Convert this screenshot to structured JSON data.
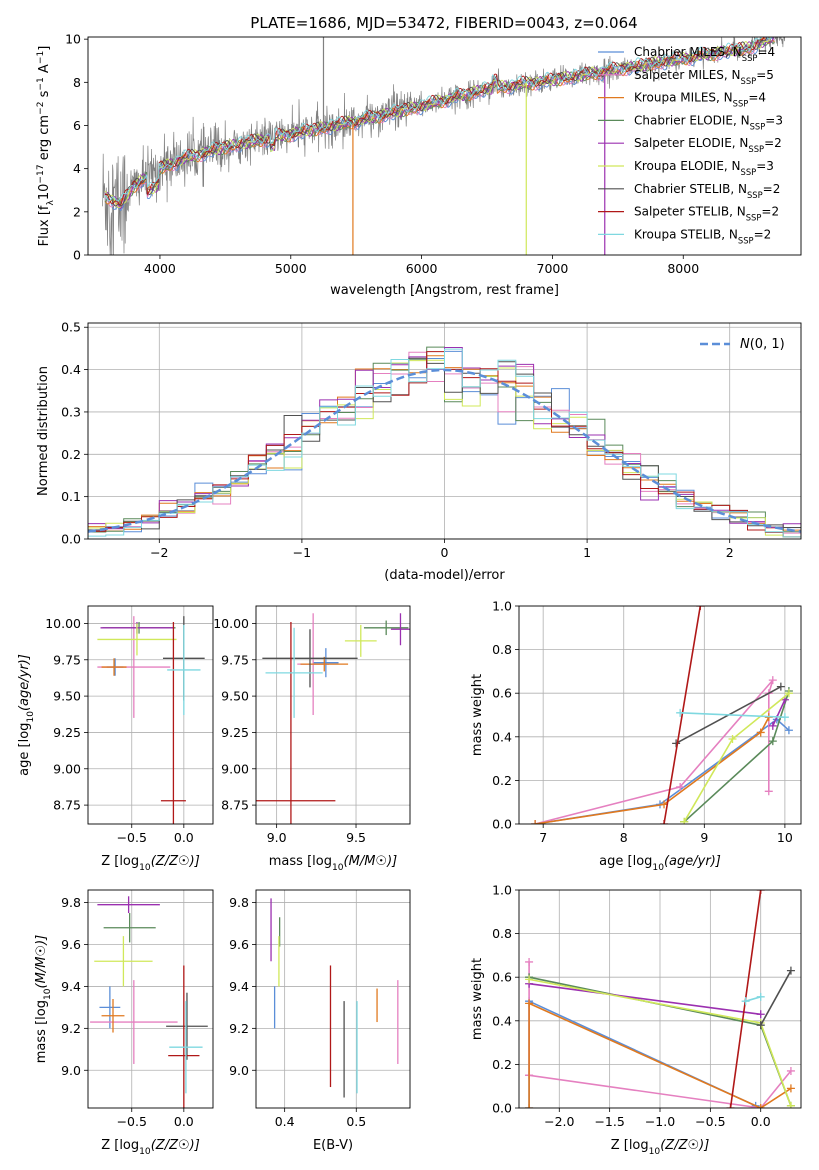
{
  "figure": {
    "title": "PLATE=1686, MJD=53472, FIBERID=0043, z=0.064"
  },
  "colors": {
    "series": [
      "#5b8ed8",
      "#e580c0",
      "#e0791f",
      "#5a8a5a",
      "#9b30b0",
      "#d0e85a",
      "#505050",
      "#b01818",
      "#7fd8e0"
    ],
    "data_gray": "#808080",
    "gaussian": "#5b8ed8",
    "grid": "#b0b0b0"
  },
  "legend_labels": [
    "Chabrier MILES, N_SSP=4",
    "Salpeter MILES, N_SSP=5",
    "Kroupa MILES, N_SSP=4",
    "Chabrier ELODIE, N_SSP=3",
    "Salpeter ELODIE, N_SSP=2",
    "Kroupa ELODIE, N_SSP=3",
    "Chabrier STELIB, N_SSP=2",
    "Salpeter STELIB, N_SSP=2",
    "Kroupa STELIB, N_SSP=2"
  ],
  "legend_parts": [
    [
      "Chabrier MILES, N",
      "SSP",
      "=4"
    ],
    [
      "Salpeter MILES, N",
      "SSP",
      "=5"
    ],
    [
      "Kroupa MILES, N",
      "SSP",
      "=4"
    ],
    [
      "Chabrier ELODIE, N",
      "SSP",
      "=3"
    ],
    [
      "Salpeter ELODIE, N",
      "SSP",
      "=2"
    ],
    [
      "Kroupa ELODIE, N",
      "SSP",
      "=3"
    ],
    [
      "Chabrier STELIB, N",
      "SSP",
      "=2"
    ],
    [
      "Salpeter STELIB, N",
      "SSP",
      "=2"
    ],
    [
      "Kroupa STELIB, N",
      "SSP",
      "=2"
    ]
  ],
  "chart_data": [
    {
      "id": "spectrum",
      "type": "line",
      "xlabel": "wavelength [Angstrom, rest frame]",
      "ylabel": "Flux [f_λ 10^-17 erg cm^-2 s^-1 A^-1]",
      "xlim": [
        3450,
        8900
      ],
      "ylim": [
        0,
        10.1
      ],
      "xticks": [
        4000,
        5000,
        6000,
        7000,
        8000
      ],
      "yticks": [
        0,
        2,
        4,
        6,
        8,
        10
      ],
      "grid": false,
      "legend_position": "right",
      "continuum_points": [
        [
          3600,
          2.7
        ],
        [
          3700,
          2.3
        ],
        [
          3800,
          3.2
        ],
        [
          3900,
          3.6
        ],
        [
          4000,
          4.0
        ],
        [
          4200,
          4.5
        ],
        [
          4500,
          5.0
        ],
        [
          5000,
          5.6
        ],
        [
          5500,
          6.2
        ],
        [
          6000,
          6.9
        ],
        [
          6500,
          7.7
        ],
        [
          7000,
          8.1
        ],
        [
          7500,
          8.6
        ],
        [
          8000,
          9.1
        ],
        [
          8500,
          9.6
        ],
        [
          8700,
          10.1
        ]
      ],
      "spike_lines": [
        {
          "x": 5250,
          "y0": 5.7,
          "y1": 10.1,
          "series": -1
        },
        {
          "x": 5475,
          "y0": 6.1,
          "y1": 0.0,
          "series": 2
        },
        {
          "x": 6800,
          "y0": 8.0,
          "y1": 0.0,
          "series": 5
        },
        {
          "x": 7400,
          "y0": 8.4,
          "y1": 0.0,
          "series": 4
        }
      ]
    },
    {
      "id": "residuals",
      "type": "histogram",
      "xlabel": "(data-model)/error",
      "ylabel": "Normed distribution",
      "xlim": [
        -2.5,
        2.5
      ],
      "ylim": [
        0,
        0.51
      ],
      "xticks": [
        -2,
        -1,
        0,
        1,
        2
      ],
      "yticks": [
        0,
        0.1,
        0.2,
        0.3,
        0.4,
        0.5
      ],
      "grid": true,
      "legend": "N(0,1)",
      "legend_position": "top-right",
      "bins": 40,
      "reference_curve": "standard normal N(0,1)"
    },
    {
      "id": "age_vs_Z",
      "type": "errorbar",
      "xlabel": "Z [log10(Z/Z☉)]",
      "ylabel": "age  [log10(age/yr)]",
      "xlim": [
        -0.92,
        0.28
      ],
      "ylim": [
        8.62,
        10.12
      ],
      "xticks": [
        -0.5,
        0.0
      ],
      "yticks": [
        8.75,
        9.0,
        9.25,
        9.5,
        9.75,
        10.0
      ],
      "grid": true,
      "points": [
        {
          "series": 0,
          "x": -0.66,
          "y": 9.7,
          "xerr": 0.08,
          "yerr": 0.06
        },
        {
          "series": 1,
          "x": -0.48,
          "y": 9.7,
          "xerr": 0.35,
          "yerr": 0.35
        },
        {
          "series": 2,
          "x": -0.67,
          "y": 9.7,
          "xerr": 0.12,
          "yerr": 0.06
        },
        {
          "series": 3,
          "x": -0.43,
          "y": 9.97,
          "xerr": 0.35,
          "yerr": 0.04
        },
        {
          "series": 4,
          "x": -0.45,
          "y": 9.97,
          "xerr": 0.35,
          "yerr": 0.04
        },
        {
          "series": 5,
          "x": -0.45,
          "y": 9.89,
          "xerr": 0.38,
          "yerr": 0.11
        },
        {
          "series": 6,
          "x": 0.0,
          "y": 9.76,
          "xerr": 0.2,
          "yerr": 0.29
        },
        {
          "series": 7,
          "x": -0.1,
          "y": 8.78,
          "xerr": 0.12,
          "yerr": 1.23
        },
        {
          "series": 8,
          "x": 0.0,
          "y": 9.68,
          "xerr": 0.16,
          "yerr": 0.31
        }
      ]
    },
    {
      "id": "age_vs_mass",
      "type": "errorbar",
      "xlabel": "mass [log10(M/M☉)]",
      "ylabel": "",
      "xlim": [
        8.87,
        9.84
      ],
      "ylim": [
        8.62,
        10.12
      ],
      "xticks": [
        9.0,
        9.5
      ],
      "yticks": [
        8.75,
        9.0,
        9.25,
        9.5,
        9.75,
        10.0
      ],
      "grid": true,
      "points": [
        {
          "series": 0,
          "x": 9.31,
          "y": 9.73,
          "xerr": 0.08,
          "yerr": 0.1
        },
        {
          "series": 1,
          "x": 9.23,
          "y": 9.72,
          "xerr": 0.1,
          "yerr": 0.35
        },
        {
          "series": 2,
          "x": 9.3,
          "y": 9.72,
          "xerr": 0.15,
          "yerr": 0.05
        },
        {
          "series": 3,
          "x": 9.69,
          "y": 9.97,
          "xerr": 0.14,
          "yerr": 0.05
        },
        {
          "series": 4,
          "x": 9.78,
          "y": 9.96,
          "xerr": 0.06,
          "yerr": 0.11
        },
        {
          "series": 5,
          "x": 9.53,
          "y": 9.88,
          "xerr": 0.1,
          "yerr": 0.11
        },
        {
          "series": 6,
          "x": 9.21,
          "y": 9.76,
          "xerr": 0.3,
          "yerr": 0.2
        },
        {
          "series": 7,
          "x": 9.09,
          "y": 8.78,
          "xerr": 0.28,
          "yerr": 1.23
        },
        {
          "series": 8,
          "x": 9.11,
          "y": 9.66,
          "xerr": 0.18,
          "yerr": 0.31
        }
      ]
    },
    {
      "id": "weight_vs_age",
      "type": "line",
      "xlabel": "age  [log10(age/yr)]",
      "ylabel": "mass weight",
      "xlim": [
        6.7,
        10.2
      ],
      "ylim": [
        0,
        1.0
      ],
      "xticks": [
        7,
        8,
        9,
        10
      ],
      "yticks": [
        0.0,
        0.2,
        0.4,
        0.6,
        0.8,
        1.0
      ],
      "grid": true,
      "series": [
        {
          "index": 0,
          "x": [
            6.9,
            8.45,
            9.9,
            10.05
          ],
          "y": [
            0.0,
            0.09,
            0.48,
            0.43
          ]
        },
        {
          "index": 1,
          "x": [
            6.9,
            8.7,
            9.85,
            9.8,
            9.8
          ],
          "y": [
            0.0,
            0.17,
            0.66,
            0.6,
            0.15
          ]
        },
        {
          "index": 2,
          "x": [
            6.9,
            8.5,
            9.7,
            9.8
          ],
          "y": [
            0.0,
            0.09,
            0.42,
            0.49
          ]
        },
        {
          "index": 3,
          "x": [
            8.75,
            9.85,
            10.05
          ],
          "y": [
            0.01,
            0.38,
            0.61
          ]
        },
        {
          "index": 4,
          "x": [
            9.85,
            10.0
          ],
          "y": [
            0.45,
            0.57
          ]
        },
        {
          "index": 5,
          "x": [
            8.75,
            9.35,
            10.05
          ],
          "y": [
            0.01,
            0.39,
            0.6
          ]
        },
        {
          "index": 6,
          "x": [
            8.65,
            9.95
          ],
          "y": [
            0.37,
            0.63
          ]
        },
        {
          "index": 7,
          "x": [
            8.5,
            8.95
          ],
          "y": [
            0.0,
            1.0
          ]
        },
        {
          "index": 8,
          "x": [
            8.7,
            10.0
          ],
          "y": [
            0.51,
            0.49
          ]
        }
      ]
    },
    {
      "id": "mass_vs_Z",
      "type": "errorbar",
      "xlabel": "Z [log10(Z/Z☉)]",
      "ylabel": "mass [log10(M/M☉)]",
      "xlim": [
        -0.92,
        0.28
      ],
      "ylim": [
        8.82,
        9.86
      ],
      "xticks": [
        -0.5,
        0.0
      ],
      "yticks": [
        9.0,
        9.2,
        9.4,
        9.6,
        9.8
      ],
      "grid": true,
      "points": [
        {
          "series": 0,
          "x": -0.71,
          "y": 9.3,
          "xerr": 0.1,
          "yerr": 0.1
        },
        {
          "series": 1,
          "x": -0.48,
          "y": 9.23,
          "xerr": 0.42,
          "yerr": 0.2
        },
        {
          "series": 2,
          "x": -0.68,
          "y": 9.26,
          "xerr": 0.11,
          "yerr": 0.08
        },
        {
          "series": 3,
          "x": -0.52,
          "y": 9.68,
          "xerr": 0.25,
          "yerr": 0.07
        },
        {
          "series": 4,
          "x": -0.53,
          "y": 9.79,
          "xerr": 0.3,
          "yerr": 0.04
        },
        {
          "series": 5,
          "x": -0.58,
          "y": 9.52,
          "xerr": 0.28,
          "yerr": 0.12
        },
        {
          "series": 6,
          "x": 0.03,
          "y": 9.21,
          "xerr": 0.2,
          "yerr": 0.16
        },
        {
          "series": 7,
          "x": 0.0,
          "y": 9.07,
          "xerr": 0.15,
          "yerr": 0.43
        },
        {
          "series": 8,
          "x": 0.02,
          "y": 9.11,
          "xerr": 0.16,
          "yerr": 0.22
        }
      ]
    },
    {
      "id": "mass_vs_ebv",
      "type": "errorbar",
      "xlabel": "E(B-V)",
      "ylabel": "",
      "xlim": [
        0.36,
        0.575
      ],
      "ylim": [
        8.82,
        9.86
      ],
      "xticks": [
        0.4,
        0.5
      ],
      "yticks": [
        9.0,
        9.2,
        9.4,
        9.6,
        9.8
      ],
      "grid": true,
      "points": [
        {
          "series": 0,
          "x": 0.386,
          "y": 9.3,
          "xerr": 0.0,
          "yerr": 0.1
        },
        {
          "series": 1,
          "x": 0.558,
          "y": 9.23,
          "xerr": 0.0,
          "yerr": 0.2
        },
        {
          "series": 2,
          "x": 0.529,
          "y": 9.31,
          "xerr": 0.0,
          "yerr": 0.08
        },
        {
          "series": 3,
          "x": 0.393,
          "y": 9.66,
          "xerr": 0.0,
          "yerr": 0.07
        },
        {
          "series": 4,
          "x": 0.381,
          "y": 9.67,
          "xerr": 0.0,
          "yerr": 0.15
        },
        {
          "series": 5,
          "x": 0.392,
          "y": 9.52,
          "xerr": 0.0,
          "yerr": 0.12
        },
        {
          "series": 6,
          "x": 0.483,
          "y": 9.1,
          "xerr": 0.0,
          "yerr": 0.23
        },
        {
          "series": 7,
          "x": 0.464,
          "y": 9.21,
          "xerr": 0.0,
          "yerr": 0.29
        },
        {
          "series": 8,
          "x": 0.501,
          "y": 9.11,
          "xerr": 0.0,
          "yerr": 0.22
        }
      ]
    },
    {
      "id": "weight_vs_Z",
      "type": "line",
      "xlabel": "Z [log10(Z/Z☉)]",
      "ylabel": "mass weight",
      "xlim": [
        -2.4,
        0.4
      ],
      "ylim": [
        0,
        1.0
      ],
      "xticks": [
        -2.0,
        -1.5,
        -1.0,
        -0.5,
        0.0
      ],
      "yticks": [
        0.0,
        0.2,
        0.4,
        0.6,
        0.8,
        1.0
      ],
      "grid": true,
      "series": [
        {
          "index": 0,
          "x": [
            -2.3,
            -2.3,
            -0.05
          ],
          "y": [
            0.0,
            0.49,
            0.01
          ]
        },
        {
          "index": 1,
          "x": [
            -2.3,
            -2.3,
            -2.3,
            0.0,
            0.3
          ],
          "y": [
            0.67,
            0.15,
            0.15,
            0.0,
            0.17
          ]
        },
        {
          "index": 2,
          "x": [
            -2.3,
            -2.3,
            0.0,
            0.3
          ],
          "y": [
            0.0,
            0.48,
            0.0,
            0.09
          ]
        },
        {
          "index": 3,
          "x": [
            -2.3,
            0.0,
            0.3
          ],
          "y": [
            0.6,
            0.38,
            0.01
          ]
        },
        {
          "index": 4,
          "x": [
            -2.3,
            0.0
          ],
          "y": [
            0.57,
            0.43
          ]
        },
        {
          "index": 5,
          "x": [
            -2.3,
            0.0,
            0.3
          ],
          "y": [
            0.59,
            0.39,
            0.01
          ]
        },
        {
          "index": 6,
          "x": [
            0.0,
            0.3
          ],
          "y": [
            0.38,
            0.63
          ]
        },
        {
          "index": 7,
          "x": [
            -0.3,
            0.0
          ],
          "y": [
            0.0,
            1.0
          ]
        },
        {
          "index": 8,
          "x": [
            -0.15,
            0.0
          ],
          "y": [
            0.49,
            0.51
          ]
        }
      ]
    }
  ]
}
